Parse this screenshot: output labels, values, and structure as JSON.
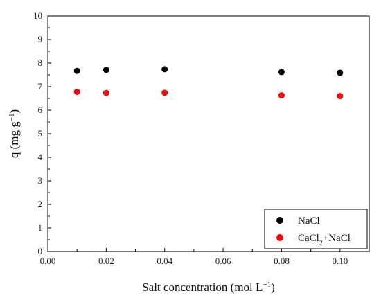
{
  "chart_data": {
    "type": "scatter",
    "xlabel": {
      "text": "Salt concentration (mol L",
      "sup": "−1",
      "tail": ")"
    },
    "ylabel": {
      "text": "q (mg g",
      "sup": "−1",
      "tail": ")"
    },
    "xlim": [
      0,
      0.11
    ],
    "ylim": [
      0,
      10
    ],
    "xticks": [
      "0.00",
      "0.02",
      "0.04",
      "0.06",
      "0.08",
      "0.10"
    ],
    "yticks": [
      "0",
      "1",
      "2",
      "3",
      "4",
      "5",
      "6",
      "7",
      "8",
      "9",
      "10"
    ],
    "legend_position": "bottom-right",
    "series": [
      {
        "name": "NaCl",
        "name_parts": {
          "main": "NaCl",
          "sub": "",
          "tail": ""
        },
        "color": "#000000",
        "points": [
          {
            "x": 0.01,
            "y": 7.67
          },
          {
            "x": 0.02,
            "y": 7.71
          },
          {
            "x": 0.04,
            "y": 7.74
          },
          {
            "x": 0.08,
            "y": 7.62
          },
          {
            "x": 0.1,
            "y": 7.59
          }
        ]
      },
      {
        "name": "CaCl2+NaCl",
        "name_parts": {
          "main": "CaCl",
          "sub": "2",
          "tail": "+NaCl"
        },
        "color": "#ff0000",
        "points": [
          {
            "x": 0.01,
            "y": 6.78
          },
          {
            "x": 0.02,
            "y": 6.73
          },
          {
            "x": 0.04,
            "y": 6.74
          },
          {
            "x": 0.08,
            "y": 6.63
          },
          {
            "x": 0.1,
            "y": 6.6
          }
        ]
      }
    ]
  }
}
